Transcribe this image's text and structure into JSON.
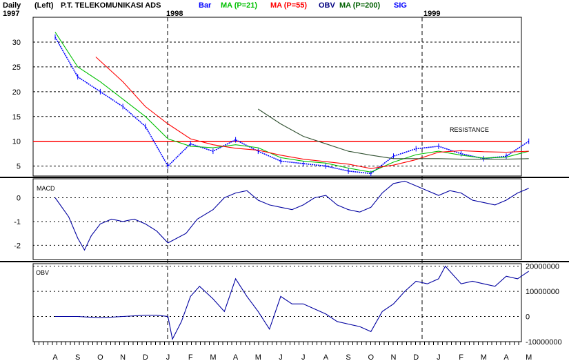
{
  "header": {
    "period": "Daily",
    "scale_side": "(Left)",
    "title": "P.T. TELEKOMUNIKASI ADS",
    "legend": [
      {
        "label": "Bar",
        "color": "#0000ff"
      },
      {
        "label": "MA (P=21)",
        "color": "#00c000"
      },
      {
        "label": "MA (P=55)",
        "color": "#ff0000"
      },
      {
        "label": "OBV",
        "color": "#000080"
      },
      {
        "label": "MA (P=200)",
        "color": "#006000"
      },
      {
        "label": "SIG",
        "color": "#0000ff"
      }
    ],
    "years": [
      "1997",
      "1998",
      "1999"
    ]
  },
  "colors": {
    "bar": "#0000ff",
    "ma21": "#00c000",
    "ma55": "#ff0000",
    "ma200": "#305030",
    "resistance": "#ff0000",
    "macd": "#0000a0",
    "obv": "#0000a0",
    "grid": "#000000"
  },
  "chart_data": [
    {
      "type": "line",
      "panel": "price",
      "y_ticks": [
        "30",
        "25",
        "20",
        "15",
        "10",
        "5"
      ],
      "ylim": [
        3,
        35
      ],
      "x_months": [
        "A",
        "S",
        "O",
        "N",
        "D",
        "J",
        "F",
        "M",
        "A",
        "M",
        "J",
        "J",
        "A",
        "S",
        "O",
        "N",
        "D",
        "J",
        "F",
        "M",
        "A",
        "M"
      ],
      "annotation": "RESISTANCE",
      "resistance_level": 10,
      "series": [
        {
          "name": "Bar",
          "x": [
            0,
            1,
            2,
            3,
            4,
            5,
            6,
            7,
            8,
            9,
            10,
            11,
            12,
            13,
            14,
            15,
            16,
            17,
            18,
            19,
            20,
            21
          ],
          "values": [
            31,
            23,
            20,
            17,
            13,
            5,
            9.5,
            8,
            10.3,
            8,
            6,
            5.5,
            5,
            4,
            3.5,
            7,
            8.5,
            9,
            7.5,
            6.5,
            7,
            10
          ]
        },
        {
          "name": "MA (P=21)",
          "x": [
            0,
            1,
            2,
            3,
            4,
            5,
            6,
            7,
            8,
            9,
            10,
            11,
            12,
            13,
            14,
            15,
            16,
            17,
            18,
            19,
            20,
            21
          ],
          "values": [
            32,
            25,
            22,
            18.5,
            15,
            10.5,
            9,
            8.7,
            9.3,
            8.7,
            6.7,
            6,
            5.6,
            4.6,
            3.8,
            5.8,
            7.3,
            8,
            7.2,
            6.6,
            6.8,
            8
          ]
        },
        {
          "name": "MA (P=55)",
          "x": [
            1.8,
            3,
            4,
            5,
            6,
            7,
            8,
            9,
            10,
            11,
            12,
            13,
            14,
            15,
            16,
            17,
            18,
            19,
            20,
            21
          ],
          "values": [
            27,
            22,
            17,
            13.5,
            10.5,
            9.3,
            8.6,
            8.2,
            7.2,
            6.4,
            5.9,
            5.4,
            4.5,
            5.2,
            6.3,
            7.8,
            8.1,
            7.9,
            7.8,
            8
          ]
        },
        {
          "name": "MA (P=200)",
          "x": [
            9,
            10,
            11,
            12,
            13,
            14,
            15,
            16,
            17,
            18,
            19,
            20,
            21
          ],
          "values": [
            16.5,
            13.5,
            11,
            9.5,
            8,
            7.2,
            6.5,
            6.5,
            6.5,
            6.4,
            6.4,
            6.4,
            6.5
          ]
        }
      ]
    },
    {
      "type": "line",
      "panel": "macd",
      "label": "MACD",
      "y_ticks": [
        "0",
        "-1",
        "-2"
      ],
      "ylim": [
        -2.6,
        0.8
      ],
      "series": [
        {
          "name": "MACD",
          "x": [
            0,
            0.6,
            1,
            1.3,
            1.6,
            2,
            2.5,
            3,
            3.5,
            4,
            4.5,
            5,
            5.4,
            5.8,
            6.3,
            7,
            7.5,
            8,
            8.5,
            9,
            9.5,
            10,
            10.5,
            11,
            11.5,
            12,
            12.5,
            13,
            13.5,
            14,
            14.5,
            15,
            15.5,
            16,
            16.5,
            17,
            17.5,
            18,
            18.5,
            19,
            19.5,
            20,
            20.5,
            21
          ],
          "values": [
            0,
            -0.8,
            -1.7,
            -2.2,
            -1.6,
            -1.1,
            -0.9,
            -1.0,
            -0.9,
            -1.1,
            -1.4,
            -1.9,
            -1.7,
            -1.5,
            -0.9,
            -0.5,
            0,
            0.2,
            0.3,
            -0.1,
            -0.3,
            -0.4,
            -0.5,
            -0.3,
            0,
            0.1,
            -0.3,
            -0.5,
            -0.6,
            -0.4,
            0.2,
            0.6,
            0.7,
            0.5,
            0.3,
            0.1,
            0.3,
            0.2,
            -0.1,
            -0.2,
            -0.3,
            -0.1,
            0.2,
            0.4
          ]
        }
      ]
    },
    {
      "type": "line",
      "panel": "obv",
      "label": "OBV",
      "y_ticks": [
        "20000000",
        "10000000",
        "0",
        "-10000000"
      ],
      "ylim": [
        -10000000,
        21000000
      ],
      "series": [
        {
          "name": "OBV",
          "x": [
            0,
            1,
            2,
            3,
            4,
            4.5,
            5,
            5.2,
            5.6,
            6,
            6.4,
            7,
            7.5,
            8,
            8.5,
            9,
            9.5,
            10,
            10.5,
            11,
            11.5,
            12,
            12.5,
            13,
            13.5,
            14,
            14.5,
            15,
            15.5,
            16,
            16.5,
            17,
            17.3,
            17.6,
            18,
            18.5,
            19,
            19.5,
            20,
            20.5,
            21
          ],
          "values": [
            0,
            0,
            -500000,
            0,
            500000,
            500000,
            0,
            -9000000,
            -2000000,
            8000000,
            12000000,
            7000000,
            2000000,
            15000000,
            8000000,
            2000000,
            -5000000,
            8000000,
            5000000,
            5000000,
            3000000,
            1000000,
            -2000000,
            -3000000,
            -4000000,
            -6000000,
            2000000,
            5000000,
            10000000,
            14000000,
            13000000,
            15000000,
            20000000,
            17000000,
            13000000,
            14000000,
            13000000,
            12000000,
            16000000,
            15000000,
            18000000
          ]
        }
      ]
    }
  ]
}
